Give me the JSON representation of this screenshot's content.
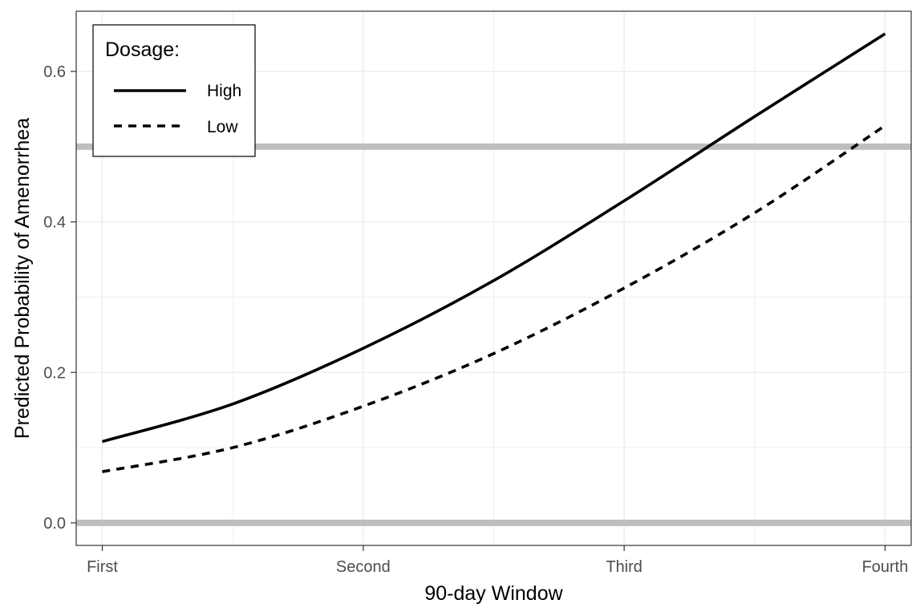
{
  "chart_data": {
    "type": "line",
    "xlabel": "90-day Window",
    "ylabel": "Predicted Probability of Amenorrhea",
    "categories": [
      "First",
      "Second",
      "Third",
      "Fourth"
    ],
    "ylim": [
      -0.03,
      0.68
    ],
    "yticks": [
      0.0,
      0.2,
      0.4,
      0.6
    ],
    "ytick_labels": [
      "0.0",
      "0.2",
      "0.4",
      "0.6"
    ],
    "reference_lines": [
      0.0,
      0.5
    ],
    "grid": true,
    "legend": {
      "title": "Dosage:",
      "position": "top-left"
    },
    "series": [
      {
        "name": "High",
        "linestyle": "solid",
        "x": [
          1,
          1.5,
          2,
          2.5,
          3,
          3.5,
          4
        ],
        "values": [
          0.108,
          0.158,
          0.232,
          0.322,
          0.428,
          0.54,
          0.65
        ]
      },
      {
        "name": "Low",
        "linestyle": "dashed",
        "x": [
          1,
          1.5,
          2,
          2.5,
          3,
          3.5,
          4
        ],
        "values": [
          0.068,
          0.1,
          0.155,
          0.225,
          0.312,
          0.412,
          0.528
        ]
      }
    ],
    "colors": {
      "lines": "#000000",
      "reference": "#bebebe",
      "grid": "#ebebeb",
      "panel_border": "#333333"
    }
  }
}
